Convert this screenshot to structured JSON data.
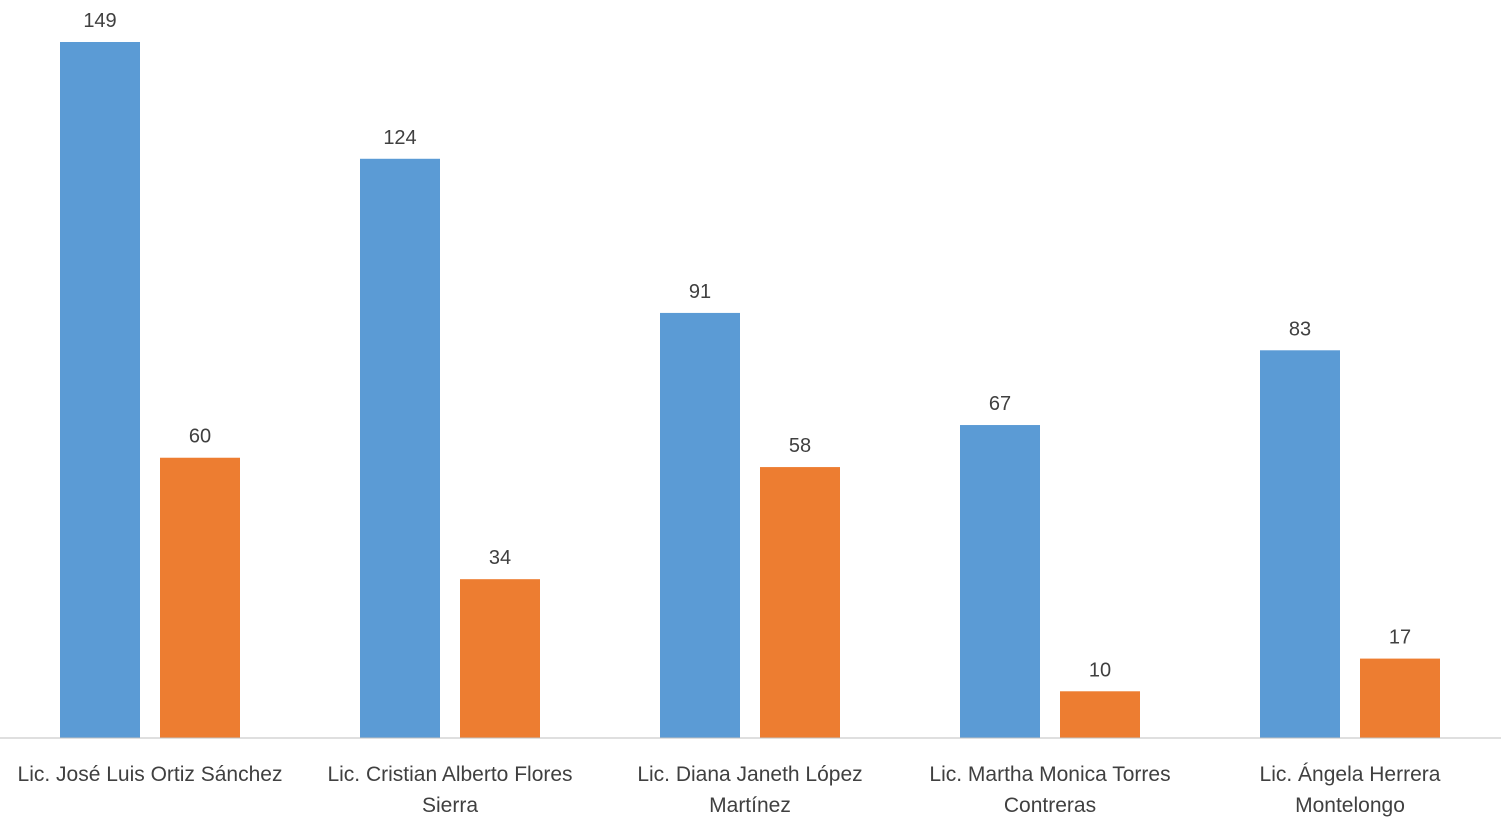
{
  "chart_data": {
    "type": "bar",
    "categories": [
      [
        "Lic. José Luis Ortiz Sánchez"
      ],
      [
        "Lic. Cristian Alberto Flores",
        "Sierra"
      ],
      [
        "Lic. Diana Janeth López",
        "Martínez"
      ],
      [
        "Lic. Martha Monica Torres",
        "Contreras"
      ],
      [
        "Lic. Ángela Herrera",
        "Montelongo"
      ]
    ],
    "series": [
      {
        "values": [
          149,
          124,
          91,
          67,
          83
        ],
        "color": "#5B9BD5"
      },
      {
        "values": [
          60,
          34,
          58,
          10,
          17
        ],
        "color": "#ED7D31"
      }
    ],
    "title": "",
    "xlabel": "",
    "ylabel": "",
    "ylim": [
      0,
      149
    ],
    "grid": false,
    "legend": "none",
    "data_labels": true,
    "axis_color": "#BFBFBF"
  }
}
